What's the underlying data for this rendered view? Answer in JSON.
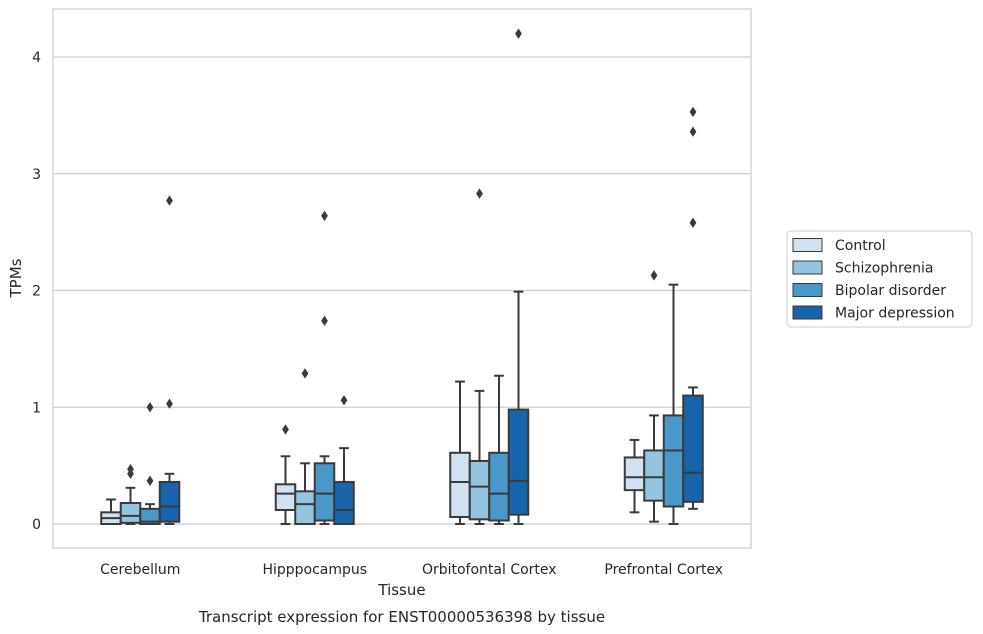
{
  "chart_data": {
    "type": "boxplot",
    "caption": "Transcript expression for ENST00000536398 by tissue",
    "xlabel": "Tissue",
    "ylabel": "TPMs",
    "ylim": [
      -0.2,
      4.4
    ],
    "yticks": [
      0,
      1,
      2,
      3,
      4
    ],
    "grid": "horizontal",
    "legend_position": "right",
    "categories": [
      "Cerebellum",
      "Hipppocampus",
      "Orbitofontal Cortex",
      "Prefrontal Cortex"
    ],
    "series": [
      {
        "name": "Control",
        "color": "#d0e1f2",
        "boxes": [
          {
            "whislo": 0.0,
            "q1": 0.0,
            "med": 0.05,
            "q3": 0.1,
            "whishi": 0.21,
            "fliers": []
          },
          {
            "whislo": 0.0,
            "q1": 0.12,
            "med": 0.26,
            "q3": 0.34,
            "whishi": 0.58,
            "fliers": [
              0.81
            ]
          },
          {
            "whislo": 0.0,
            "q1": 0.06,
            "med": 0.36,
            "q3": 0.61,
            "whishi": 1.22,
            "fliers": []
          },
          {
            "whislo": 0.1,
            "q1": 0.29,
            "med": 0.4,
            "q3": 0.57,
            "whishi": 0.72,
            "fliers": []
          }
        ]
      },
      {
        "name": "Schizophrenia",
        "color": "#94c4df",
        "boxes": [
          {
            "whislo": 0.0,
            "q1": 0.01,
            "med": 0.07,
            "q3": 0.18,
            "whishi": 0.31,
            "fliers": [
              0.43,
              0.47
            ]
          },
          {
            "whislo": 0.0,
            "q1": 0.0,
            "med": 0.17,
            "q3": 0.28,
            "whishi": 0.52,
            "fliers": [
              1.29
            ]
          },
          {
            "whislo": 0.0,
            "q1": 0.04,
            "med": 0.32,
            "q3": 0.54,
            "whishi": 1.14,
            "fliers": [
              2.83
            ]
          },
          {
            "whislo": 0.02,
            "q1": 0.2,
            "med": 0.4,
            "q3": 0.63,
            "whishi": 0.93,
            "fliers": [
              2.13
            ]
          }
        ]
      },
      {
        "name": "Bipolar disorder",
        "color": "#4a98c9",
        "boxes": [
          {
            "whislo": 0.0,
            "q1": 0.0,
            "med": 0.02,
            "q3": 0.13,
            "whishi": 0.17,
            "fliers": [
              0.37,
              1.0
            ]
          },
          {
            "whislo": 0.0,
            "q1": 0.03,
            "med": 0.26,
            "q3": 0.52,
            "whishi": 0.58,
            "fliers": [
              1.74,
              2.64
            ]
          },
          {
            "whislo": 0.0,
            "q1": 0.03,
            "med": 0.26,
            "q3": 0.61,
            "whishi": 1.27,
            "fliers": []
          },
          {
            "whislo": 0.0,
            "q1": 0.15,
            "med": 0.63,
            "q3": 0.93,
            "whishi": 2.05,
            "fliers": []
          }
        ]
      },
      {
        "name": "Major depression",
        "color": "#1764ab",
        "boxes": [
          {
            "whislo": 0.0,
            "q1": 0.02,
            "med": 0.15,
            "q3": 0.36,
            "whishi": 0.43,
            "fliers": [
              1.03,
              2.77
            ]
          },
          {
            "whislo": 0.0,
            "q1": 0.0,
            "med": 0.12,
            "q3": 0.36,
            "whishi": 0.65,
            "fliers": [
              1.06
            ]
          },
          {
            "whislo": 0.0,
            "q1": 0.08,
            "med": 0.37,
            "q3": 0.98,
            "whishi": 1.99,
            "fliers": [
              4.2
            ]
          },
          {
            "whislo": 0.13,
            "q1": 0.19,
            "med": 0.44,
            "q3": 1.1,
            "whishi": 1.17,
            "fliers": [
              2.58,
              3.36,
              3.53
            ]
          }
        ]
      }
    ]
  }
}
